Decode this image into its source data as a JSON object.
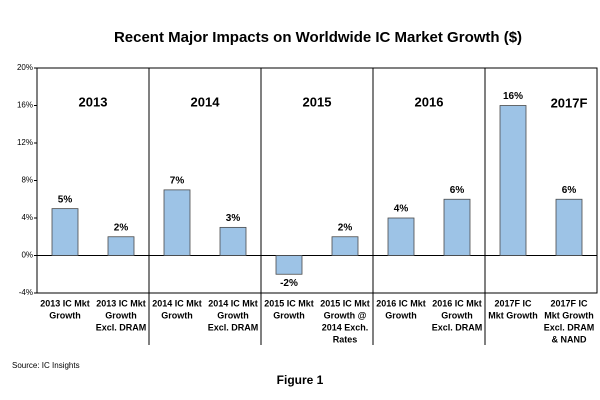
{
  "chart_data": {
    "type": "bar",
    "title": "Recent Major Impacts on Worldwide IC Market Growth ($)",
    "categories": [
      [
        "2013 IC Mkt",
        "Growth"
      ],
      [
        "2013 IC Mkt",
        "Growth",
        "Excl. DRAM"
      ],
      [
        "2014 IC Mkt",
        "Growth"
      ],
      [
        "2014 IC Mkt",
        "Growth",
        "Excl. DRAM"
      ],
      [
        "2015 IC Mkt",
        "Growth"
      ],
      [
        "2015 IC Mkt",
        "Growth @",
        "2014 Exch.",
        "Rates"
      ],
      [
        "2016 IC Mkt",
        "Growth"
      ],
      [
        "2016 IC Mkt",
        "Growth",
        "Excl. DRAM"
      ],
      [
        "2017F IC",
        "Mkt Growth"
      ],
      [
        "2017F IC",
        "Mkt Growth",
        "Excl. DRAM",
        "& NAND"
      ]
    ],
    "values": [
      5,
      2,
      7,
      3,
      -2,
      2,
      4,
      6,
      16,
      6
    ],
    "value_labels": [
      "5%",
      "2%",
      "7%",
      "3%",
      "-2%",
      "2%",
      "4%",
      "6%",
      "16%",
      "6%"
    ],
    "group_labels": [
      "2013",
      "2014",
      "2015",
      "2016",
      "2017F"
    ],
    "color": "#9dc3e6",
    "ylim": [
      -4,
      20
    ],
    "yticks": [
      {
        "value": -4,
        "label": "-4%"
      },
      {
        "value": 0,
        "label": "0%"
      },
      {
        "value": 4,
        "label": "4%"
      },
      {
        "value": 8,
        "label": "8%"
      },
      {
        "value": 12,
        "label": "12%"
      },
      {
        "value": 16,
        "label": "16%"
      },
      {
        "value": 20,
        "label": "20%"
      }
    ],
    "source": "Source: IC Insights",
    "caption": "Figure 1"
  }
}
